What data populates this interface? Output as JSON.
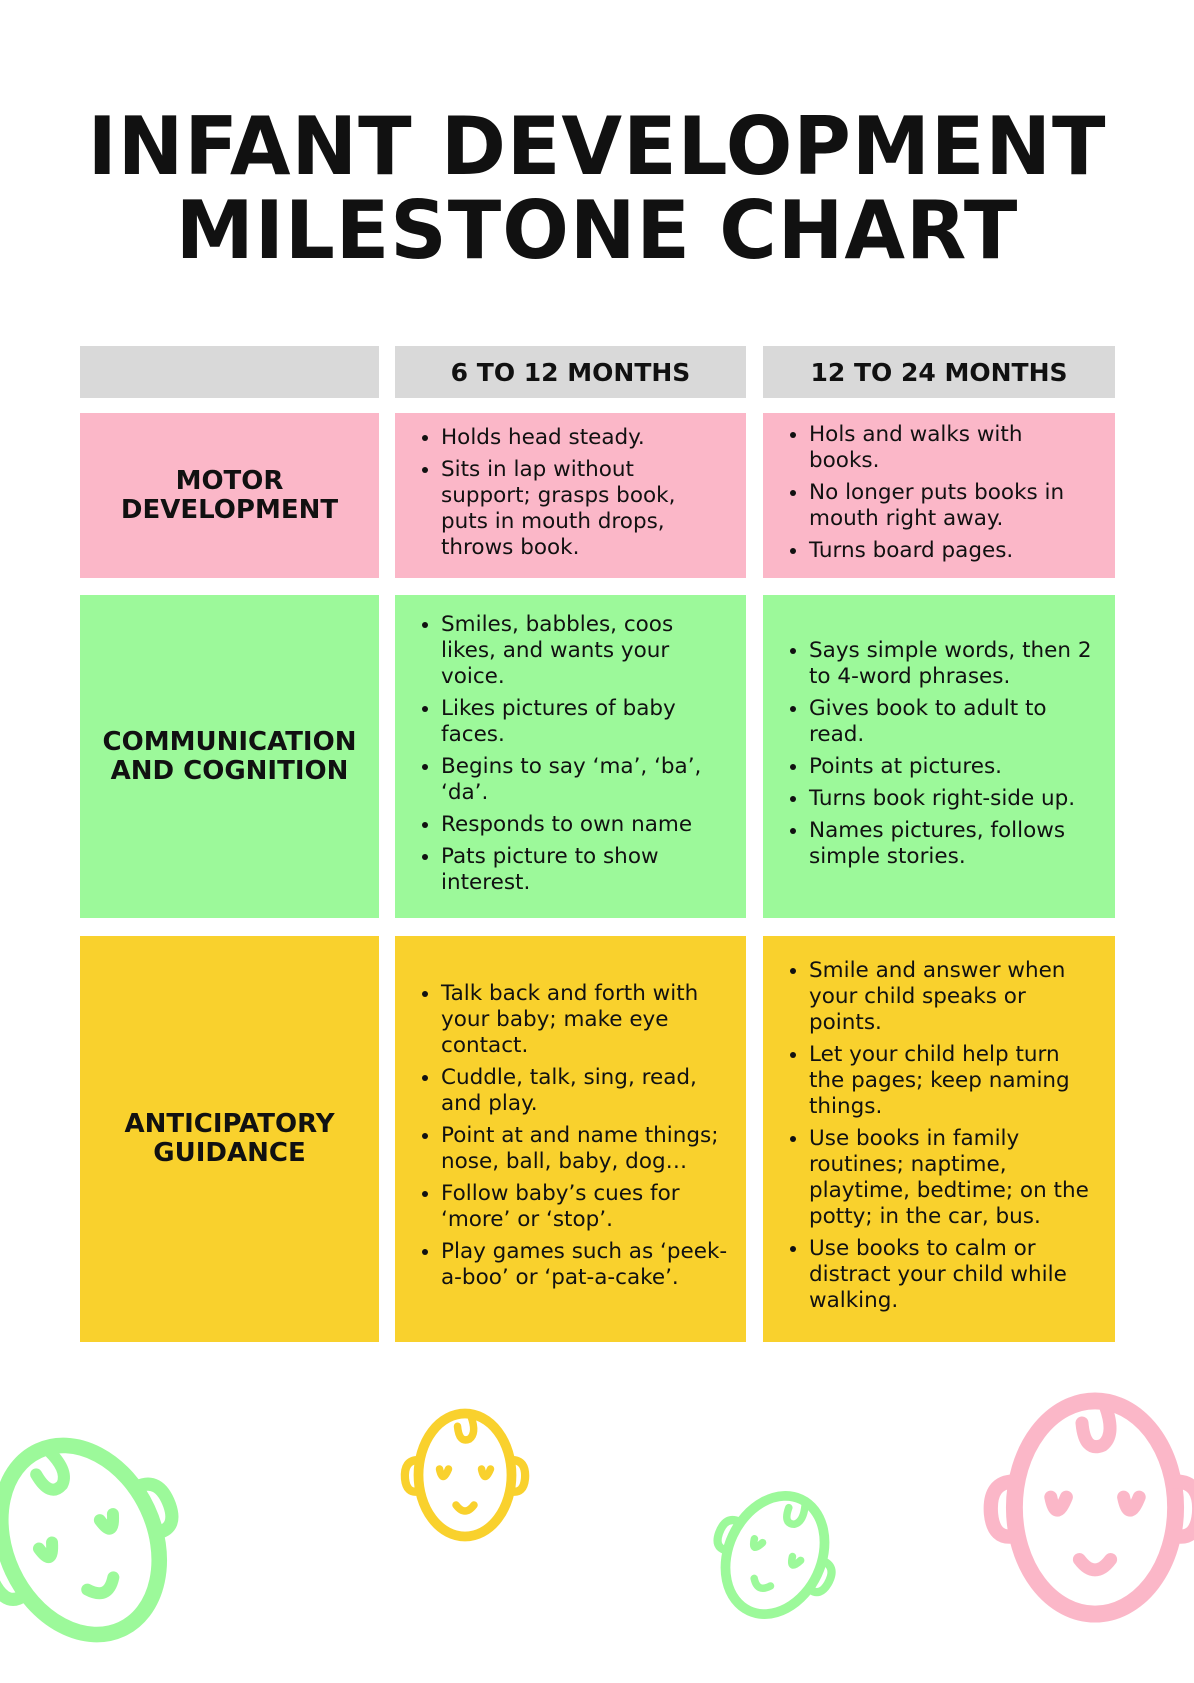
{
  "title": {
    "line1": "INFANT DEVELOPMENT",
    "line2": "MILESTONE CHART"
  },
  "columns": [
    "",
    "6 TO 12 MONTHS",
    "12 TO 24 MONTHS"
  ],
  "rows": [
    {
      "label": "MOTOR DEVELOPMENT",
      "color": "#fbb7c8",
      "col1": [
        "Holds head steady.",
        "Sits in lap without support; grasps book, puts in mouth drops, throws book."
      ],
      "col2": [
        "Hols and walks with books.",
        "No longer puts books in mouth right away.",
        "Turns board pages."
      ]
    },
    {
      "label": "COMMUNICATION AND COGNITION",
      "color": "#9cf99a",
      "col1": [
        "Smiles, babbles, coos likes, and wants your voice.",
        "Likes pictures of baby faces.",
        "Begins to say ‘ma’, ‘ba’, ‘da’.",
        "Responds to own name",
        "Pats picture to show interest."
      ],
      "col2": [
        "Says simple words, then 2 to 4-word phrases.",
        "Gives book to adult to read.",
        "Points at pictures.",
        "Turns book right-side up.",
        "Names pictures, follows simple stories."
      ]
    },
    {
      "label": "ANTICIPATORY GUIDANCE",
      "color": "#f9d12d",
      "col1": [
        "Talk back and forth with your baby; make eye contact.",
        "Cuddle, talk, sing, read, and play.",
        "Point at and name things; nose, ball, baby, dog…",
        "Follow baby’s cues for ‘more’ or ‘stop’.",
        "Play games such as ‘peek-a-boo’ or ‘pat-a-cake’."
      ],
      "col2": [
        "Smile and answer when your child speaks or points.",
        "Let your child help turn the pages; keep naming things.",
        "Use books in family routines; naptime, playtime, bedtime; on the potty; in the car, bus.",
        "Use books to calm or distract your child while walking."
      ]
    }
  ],
  "decorations": {
    "icon": "baby-face-icon",
    "colors": [
      "#9cf99a",
      "#f9d12d",
      "#9cf99a",
      "#fbb7c8"
    ]
  }
}
